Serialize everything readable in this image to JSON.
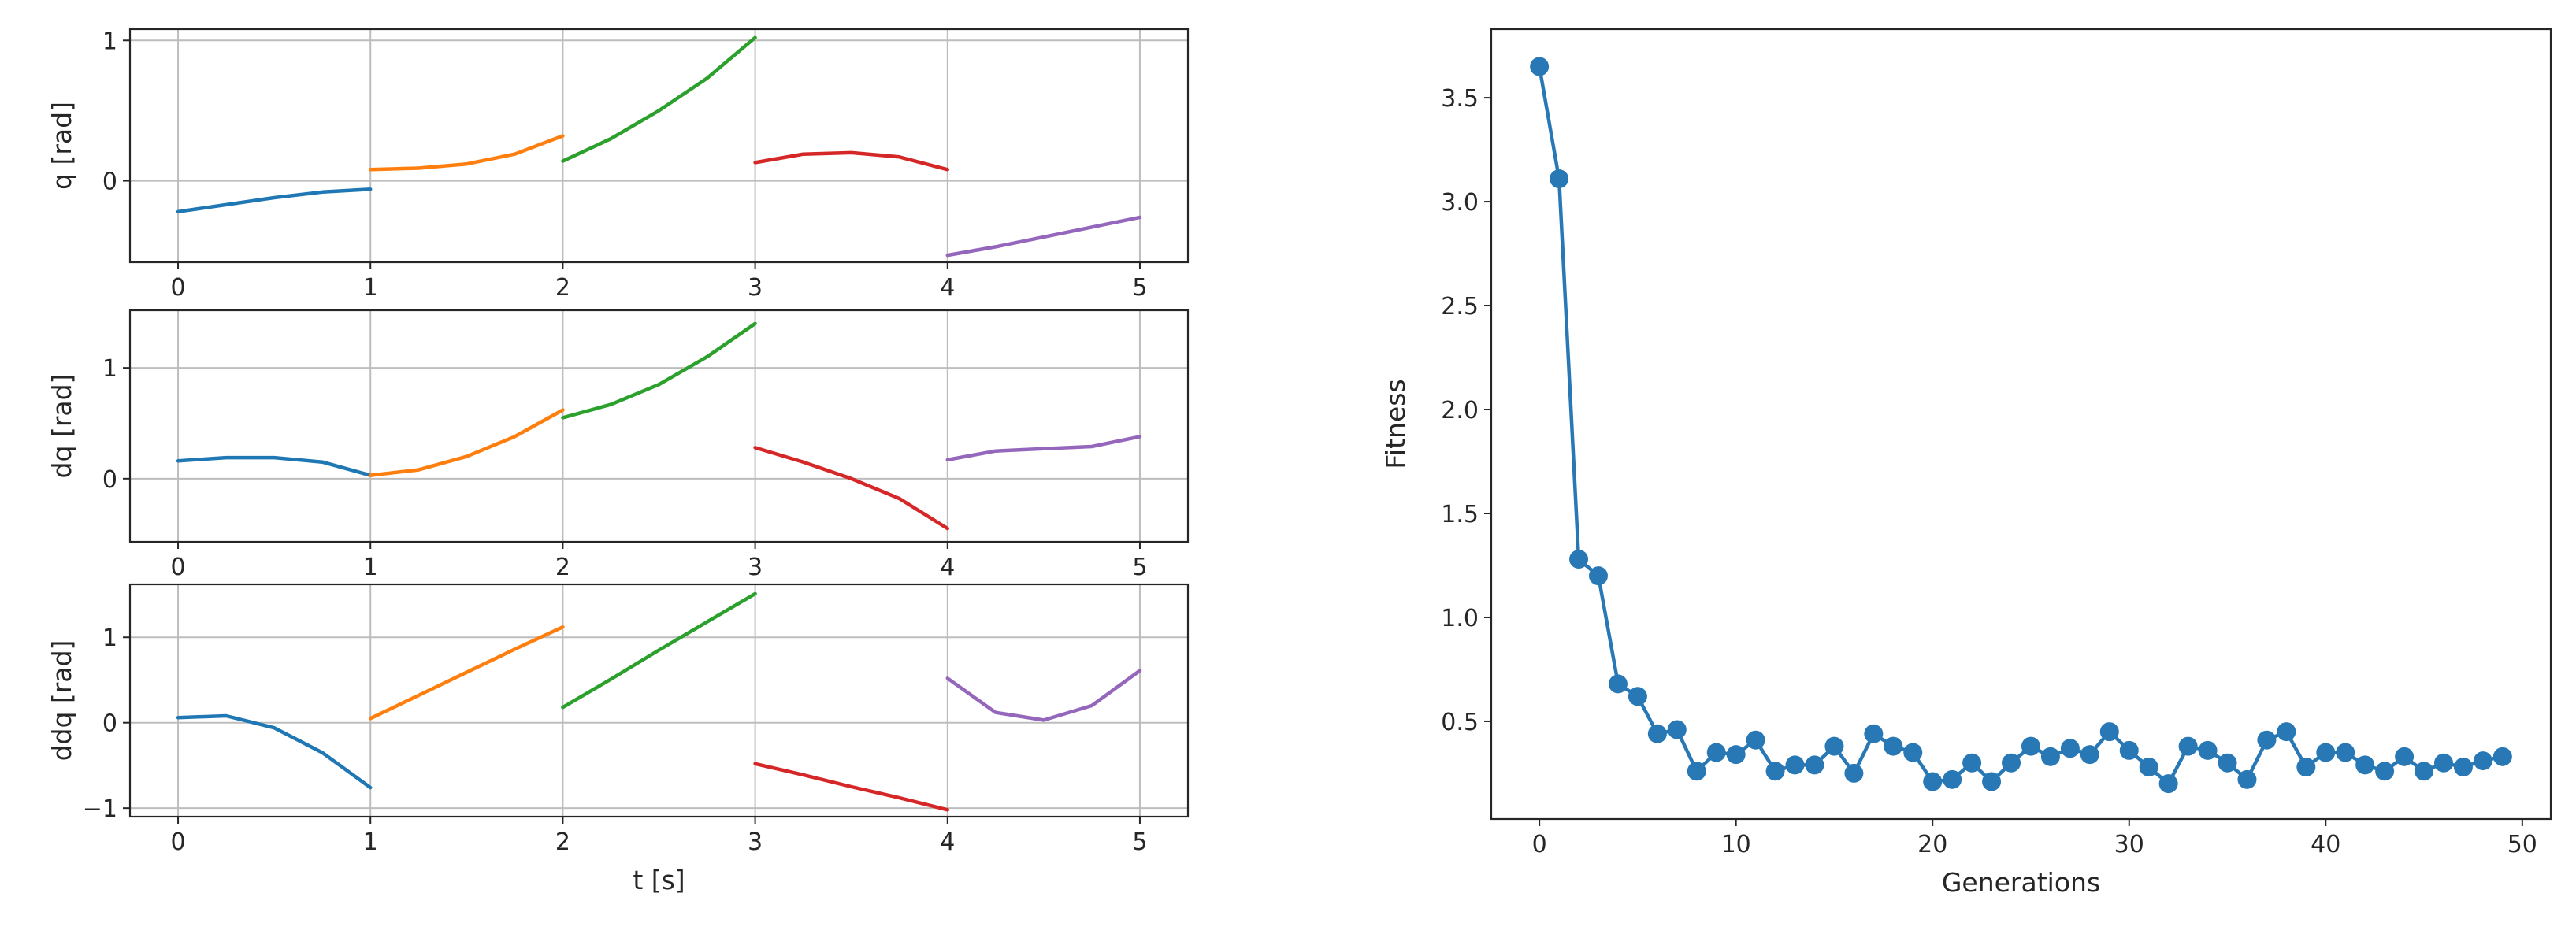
{
  "colors": {
    "seg0": "#1f77b4",
    "seg1": "#ff7f0e",
    "seg2": "#2ca02c",
    "seg3": "#d62728",
    "seg4": "#9467bd",
    "fitness": "#2878b5",
    "grid": "#bdbdbd",
    "axis": "#262626"
  },
  "chart_data": [
    {
      "type": "line",
      "ylabel": "q [rad]",
      "xlabel": "",
      "grid": true,
      "xlim": [
        -0.25,
        5.25
      ],
      "ylim": [
        -0.58,
        1.08
      ],
      "xticks": [
        0,
        1,
        2,
        3,
        4,
        5
      ],
      "yticks": [
        0,
        1
      ],
      "series": [
        {
          "x": [
            0,
            0.25,
            0.5,
            0.75,
            1
          ],
          "values": [
            -0.22,
            -0.17,
            -0.12,
            -0.08,
            -0.06
          ]
        },
        {
          "x": [
            1,
            1.25,
            1.5,
            1.75,
            2
          ],
          "values": [
            0.08,
            0.09,
            0.12,
            0.19,
            0.32
          ]
        },
        {
          "x": [
            2,
            2.25,
            2.5,
            2.75,
            3
          ],
          "values": [
            0.14,
            0.3,
            0.5,
            0.73,
            1.02
          ]
        },
        {
          "x": [
            3,
            3.25,
            3.5,
            3.75,
            4
          ],
          "values": [
            0.13,
            0.19,
            0.2,
            0.17,
            0.08
          ]
        },
        {
          "x": [
            4,
            4.25,
            4.5,
            4.75,
            5
          ],
          "values": [
            -0.53,
            -0.47,
            -0.4,
            -0.33,
            -0.26
          ]
        }
      ]
    },
    {
      "type": "line",
      "ylabel": "dq [rad]",
      "xlabel": "",
      "grid": true,
      "xlim": [
        -0.25,
        5.25
      ],
      "ylim": [
        -0.57,
        1.52
      ],
      "xticks": [
        0,
        1,
        2,
        3,
        4,
        5
      ],
      "yticks": [
        0,
        1
      ],
      "series": [
        {
          "x": [
            0,
            0.25,
            0.5,
            0.75,
            1
          ],
          "values": [
            0.16,
            0.19,
            0.19,
            0.15,
            0.03
          ]
        },
        {
          "x": [
            1,
            1.25,
            1.5,
            1.75,
            2
          ],
          "values": [
            0.03,
            0.08,
            0.2,
            0.38,
            0.62
          ]
        },
        {
          "x": [
            2,
            2.25,
            2.5,
            2.75,
            3
          ],
          "values": [
            0.55,
            0.67,
            0.85,
            1.1,
            1.4
          ]
        },
        {
          "x": [
            3,
            3.25,
            3.5,
            3.75,
            4
          ],
          "values": [
            0.28,
            0.15,
            0.0,
            -0.18,
            -0.45
          ]
        },
        {
          "x": [
            4,
            4.25,
            4.5,
            4.75,
            5
          ],
          "values": [
            0.17,
            0.25,
            0.27,
            0.29,
            0.38
          ]
        }
      ]
    },
    {
      "type": "line",
      "ylabel": "ddq [rad]",
      "xlabel": "t [s]",
      "grid": true,
      "xlim": [
        -0.25,
        5.25
      ],
      "ylim": [
        -1.1,
        1.62
      ],
      "xticks": [
        0,
        1,
        2,
        3,
        4,
        5
      ],
      "yticks": [
        -1,
        0,
        1
      ],
      "series": [
        {
          "x": [
            0,
            0.25,
            0.5,
            0.75,
            1
          ],
          "values": [
            0.06,
            0.08,
            -0.06,
            -0.35,
            -0.76
          ]
        },
        {
          "x": [
            1,
            1.25,
            1.5,
            1.75,
            2
          ],
          "values": [
            0.05,
            0.32,
            0.59,
            0.86,
            1.12
          ]
        },
        {
          "x": [
            2,
            2.25,
            2.5,
            2.75,
            3
          ],
          "values": [
            0.18,
            0.51,
            0.85,
            1.18,
            1.51
          ]
        },
        {
          "x": [
            3,
            3.25,
            3.5,
            3.75,
            4
          ],
          "values": [
            -0.48,
            -0.61,
            -0.75,
            -0.88,
            -1.02
          ]
        },
        {
          "x": [
            4,
            4.25,
            4.5,
            4.75,
            5
          ],
          "values": [
            0.52,
            0.12,
            0.03,
            0.2,
            0.61
          ]
        }
      ]
    },
    {
      "type": "line",
      "xlabel": "Generations",
      "ylabel": "Fitness",
      "grid": false,
      "markers": true,
      "xlim": [
        -2.45,
        51.45
      ],
      "ylim": [
        0.03,
        3.83
      ],
      "xticks": [
        0,
        10,
        20,
        30,
        40,
        50
      ],
      "yticks": [
        0.5,
        1.0,
        1.5,
        2.0,
        2.5,
        3.0,
        3.5
      ],
      "ytick_labels": [
        "0.5",
        "1.0",
        "1.5",
        "2.0",
        "2.5",
        "3.0",
        "3.5"
      ],
      "x": [
        0,
        1,
        2,
        3,
        4,
        5,
        6,
        7,
        8,
        9,
        10,
        11,
        12,
        13,
        14,
        15,
        16,
        17,
        18,
        19,
        20,
        21,
        22,
        23,
        24,
        25,
        26,
        27,
        28,
        29,
        30,
        31,
        32,
        33,
        34,
        35,
        36,
        37,
        38,
        39,
        40,
        41,
        42,
        43,
        44,
        45,
        46,
        47,
        48,
        49
      ],
      "values": [
        3.65,
        3.11,
        1.28,
        1.2,
        0.68,
        0.62,
        0.44,
        0.46,
        0.26,
        0.35,
        0.34,
        0.41,
        0.26,
        0.29,
        0.29,
        0.38,
        0.25,
        0.44,
        0.38,
        0.35,
        0.21,
        0.22,
        0.3,
        0.21,
        0.3,
        0.38,
        0.33,
        0.37,
        0.34,
        0.45,
        0.36,
        0.28,
        0.2,
        0.38,
        0.36,
        0.3,
        0.22,
        0.41,
        0.45,
        0.28,
        0.35,
        0.35,
        0.29,
        0.26,
        0.33,
        0.26,
        0.3,
        0.28,
        0.31,
        0.33
      ]
    }
  ]
}
